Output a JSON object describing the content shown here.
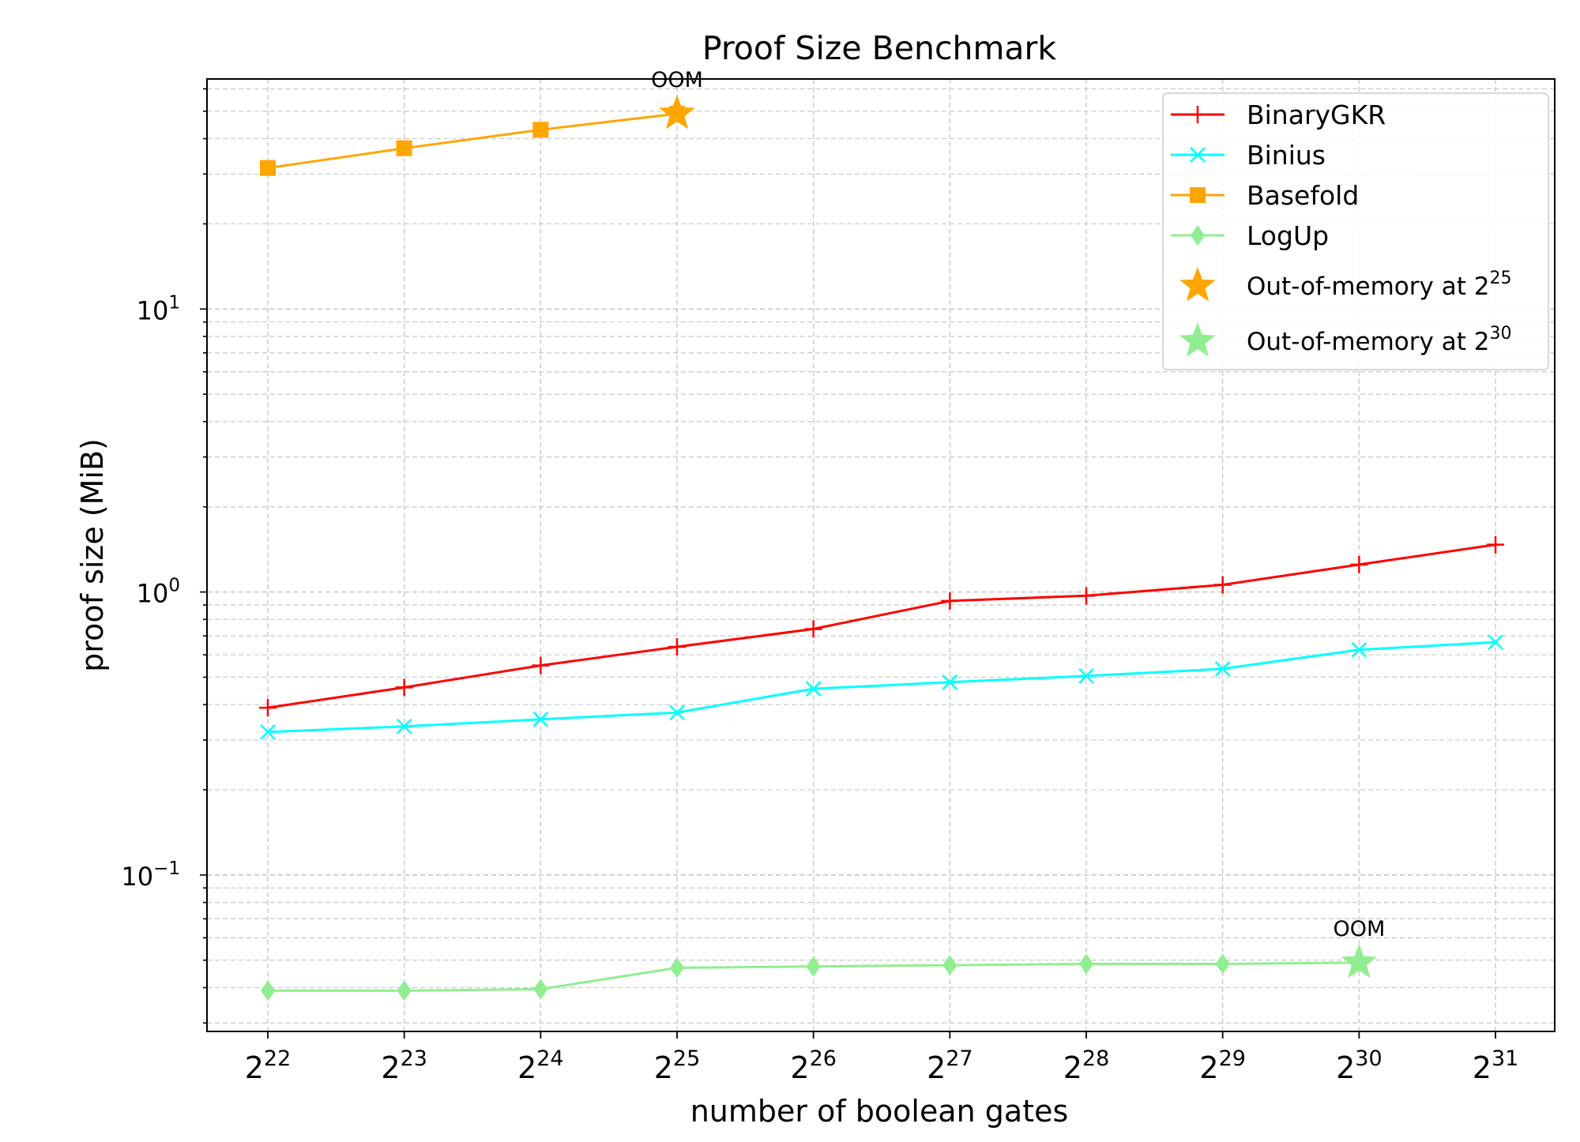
{
  "chart_data": {
    "type": "line",
    "title": "Proof Size Benchmark",
    "xlabel": "number of boolean gates",
    "ylabel": "proof size (MiB)",
    "x_scale": "log2",
    "y_scale": "log10",
    "ylim": [
      0.028,
      65
    ],
    "x_ticks": [
      {
        "base": "2",
        "exp": "22"
      },
      {
        "base": "2",
        "exp": "23"
      },
      {
        "base": "2",
        "exp": "24"
      },
      {
        "base": "2",
        "exp": "25"
      },
      {
        "base": "2",
        "exp": "26"
      },
      {
        "base": "2",
        "exp": "27"
      },
      {
        "base": "2",
        "exp": "28"
      },
      {
        "base": "2",
        "exp": "29"
      },
      {
        "base": "2",
        "exp": "30"
      },
      {
        "base": "2",
        "exp": "31"
      }
    ],
    "y_ticks": [
      {
        "base": "10",
        "exp": "−1",
        "value": 0.1
      },
      {
        "base": "10",
        "exp": "0",
        "value": 1
      },
      {
        "base": "10",
        "exp": "1",
        "value": 10
      }
    ],
    "grid": true,
    "legend_position": "top-right",
    "series": [
      {
        "name": "BinaryGKR",
        "color": "#ff0000",
        "marker": "plus",
        "x": [
          22,
          23,
          24,
          25,
          26,
          27,
          28,
          29,
          30,
          31
        ],
        "values": [
          0.39,
          0.46,
          0.55,
          0.64,
          0.74,
          0.93,
          0.97,
          1.06,
          1.25,
          1.47
        ]
      },
      {
        "name": "Binius",
        "color": "#00ffff",
        "marker": "x",
        "x": [
          22,
          23,
          24,
          25,
          26,
          27,
          28,
          29,
          30,
          31
        ],
        "values": [
          0.32,
          0.335,
          0.355,
          0.375,
          0.455,
          0.48,
          0.505,
          0.535,
          0.625,
          0.665
        ]
      },
      {
        "name": "Basefold",
        "color": "#ffa500",
        "marker": "square",
        "x": [
          22,
          23,
          24,
          25
        ],
        "values": [
          31.5,
          37,
          43,
          49
        ]
      },
      {
        "name": "LogUp",
        "color": "#90ee90",
        "marker": "diamond",
        "x": [
          22,
          23,
          24,
          25,
          26,
          27,
          28,
          29,
          30
        ],
        "values": [
          0.039,
          0.039,
          0.0395,
          0.047,
          0.0475,
          0.048,
          0.0485,
          0.0485,
          0.049
        ]
      }
    ],
    "oom_markers": [
      {
        "x": 25,
        "value": 49,
        "color": "#ffa500",
        "label": "OOM"
      },
      {
        "x": 30,
        "value": 0.049,
        "color": "#90ee90",
        "label": "OOM"
      }
    ],
    "oom_legend": [
      {
        "label": "Out-of-memory at 2",
        "exp": "25",
        "color": "#ffa500"
      },
      {
        "label": "Out-of-memory at 2",
        "exp": "30",
        "color": "#90ee90"
      }
    ]
  }
}
